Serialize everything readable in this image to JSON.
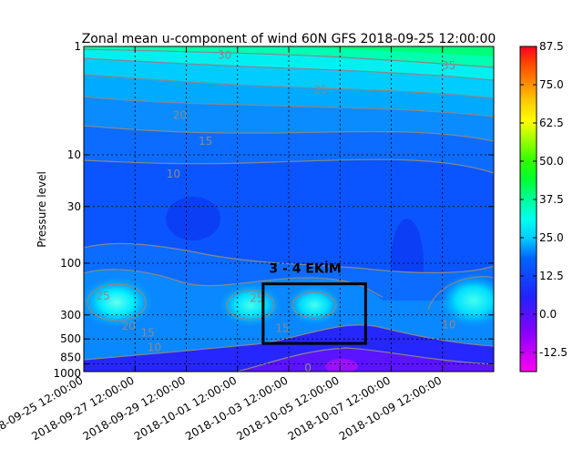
{
  "chart_data": {
    "type": "heatmap",
    "title": "Zonal mean u-component of wind 60N GFS 2018-09-25 12:00:00",
    "xlabel": "",
    "ylabel": "Pressure level",
    "y_scale": "log",
    "y_inverted": true,
    "ylim": [
      1000,
      1
    ],
    "xlim": [
      "2018-09-25 12:00:00",
      "2018-10-11 12:00:00"
    ],
    "x_ticks": [
      "2018-09-25 12:00:00",
      "2018-09-27 12:00:00",
      "2018-09-29 12:00:00",
      "2018-10-01 12:00:00",
      "2018-10-03 12:00:00",
      "2018-10-05 12:00:00",
      "2018-10-07 12:00:00",
      "2018-10-09 12:00:00"
    ],
    "y_ticks": [
      1,
      10,
      30,
      100,
      300,
      500,
      850,
      1000
    ],
    "grid": true,
    "colorbar": {
      "ticks": [
        87.5,
        75.0,
        62.5,
        50.0,
        37.5,
        25.0,
        12.5,
        0.0,
        -12.5
      ],
      "range": [
        -18.75,
        87.5
      ],
      "colormap": "gist_rainbow-like (magenta low, red high)"
    },
    "contour_labels": [
      {
        "value": "35",
        "x": "2018-10-09 18:00:00",
        "y": 1.5
      },
      {
        "value": "30",
        "x": "2018-10-01 00:00:00",
        "y": 1.2
      },
      {
        "value": "25",
        "x": "2018-10-04 18:00:00",
        "y": 2.5
      },
      {
        "value": "20",
        "x": "2018-09-29 06:00:00",
        "y": 4.3
      },
      {
        "value": "15",
        "x": "2018-09-30 06:00:00",
        "y": 7.5
      },
      {
        "value": "10",
        "x": "2018-09-29 00:00:00",
        "y": 15
      },
      {
        "value": "25",
        "x": "2018-09-26 06:00:00",
        "y": 200
      },
      {
        "value": "25",
        "x": "2018-10-02 06:00:00",
        "y": 210
      },
      {
        "value": "20",
        "x": "2018-09-27 06:00:00",
        "y": 380
      },
      {
        "value": "15",
        "x": "2018-09-28 00:00:00",
        "y": 440
      },
      {
        "value": "15",
        "x": "2018-10-03 06:00:00",
        "y": 400
      },
      {
        "value": "10",
        "x": "2018-09-28 06:00:00",
        "y": 600
      },
      {
        "value": "10",
        "x": "2018-10-09 18:00:00",
        "y": 370
      },
      {
        "value": "0",
        "x": "2018-10-04 06:00:00",
        "y": 930
      }
    ],
    "annotation": {
      "text": "3 - 4 EKİM",
      "box_x": [
        "2018-10-02 12:00:00",
        "2018-10-06 12:00:00"
      ],
      "box_y": [
        155,
        550
      ]
    }
  }
}
